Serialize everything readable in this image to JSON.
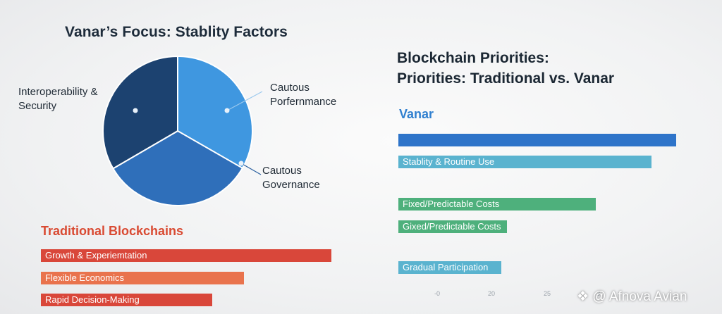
{
  "chart_data": [
    {
      "type": "pie",
      "title": "Vanar’s Focus: Stablity Factors",
      "slices": [
        {
          "label": "Cautous Porfernmance",
          "value": 33.3,
          "color": "#3f97e0"
        },
        {
          "label": "Cautous Governance",
          "value": 33.3,
          "color": "#2f6fba"
        },
        {
          "label": "Interoperability & Security",
          "value": 33.4,
          "color": "#1c4270"
        }
      ]
    },
    {
      "type": "bar",
      "orientation": "horizontal",
      "title": "Blockchain Priorities:\nPriorities: Traditional vs. Vanar",
      "group_label": "Vanar",
      "x_ticks": [
        "-0",
        "20",
        "25",
        "3"
      ],
      "bars": [
        {
          "label": "",
          "value": 100,
          "color": "#2e74c9"
        },
        {
          "label": "Stablity & Routine Use",
          "value": 91,
          "color": "#5ab3cf"
        },
        {
          "label": "Fixed/Predictable Costs",
          "value": 71,
          "color": "#4eb07c"
        },
        {
          "label": "Gixed/Predictable Costs",
          "value": 39,
          "color": "#4eb07c"
        },
        {
          "label": "Gradual Participation",
          "value": 37,
          "color": "#5ab3cf"
        }
      ]
    },
    {
      "type": "bar",
      "orientation": "horizontal",
      "title": "Traditional Blockchains",
      "bars": [
        {
          "label": "Growth & Experiemtation",
          "value": 100,
          "color": "#d9473a"
        },
        {
          "label": "Flexible Economics",
          "value": 70,
          "color": "#e9734d"
        },
        {
          "label": "Rapid Decision-Making",
          "value": 59,
          "color": "#d9473a"
        }
      ]
    }
  ],
  "watermark": "@ Afnova Avian"
}
